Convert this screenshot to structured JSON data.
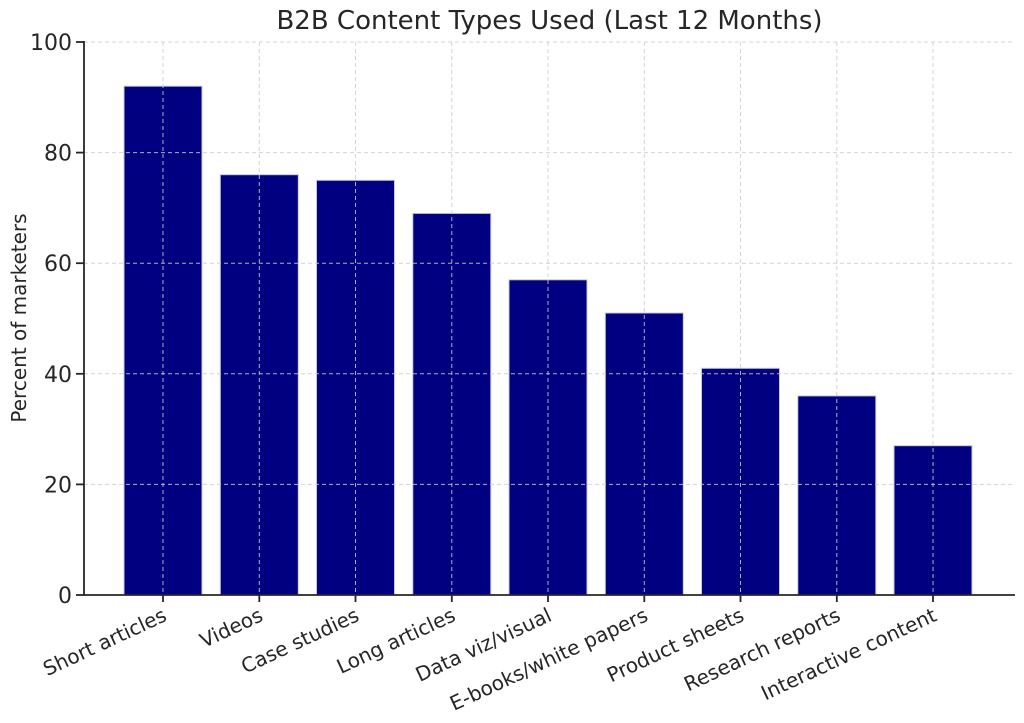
{
  "figure": {
    "background": "#ffffff"
  },
  "chart_data": {
    "type": "bar",
    "title": "B2B Content Types Used (Last 12 Months)",
    "xlabel": "",
    "ylabel": "Percent of marketers",
    "categories": [
      "Short articles",
      "Videos",
      "Case studies",
      "Long articles",
      "Data viz/visual",
      "E-books/white papers",
      "Product sheets",
      "Research reports",
      "Interactive content"
    ],
    "values": [
      92,
      76,
      75,
      69,
      57,
      51,
      41,
      36,
      27
    ],
    "ylim": [
      0,
      100
    ],
    "yticks": [
      0,
      20,
      40,
      60,
      80,
      100
    ],
    "grid": true,
    "grid_style": "dashed",
    "legend_position": "none",
    "x_tick_rotation": -25,
    "colors": {
      "bar_fill": "#000080",
      "bar_edge": "#c9c9d6",
      "grid": "#cccccc",
      "axis": "#262626",
      "text": "#262626",
      "background": "#ffffff"
    }
  }
}
